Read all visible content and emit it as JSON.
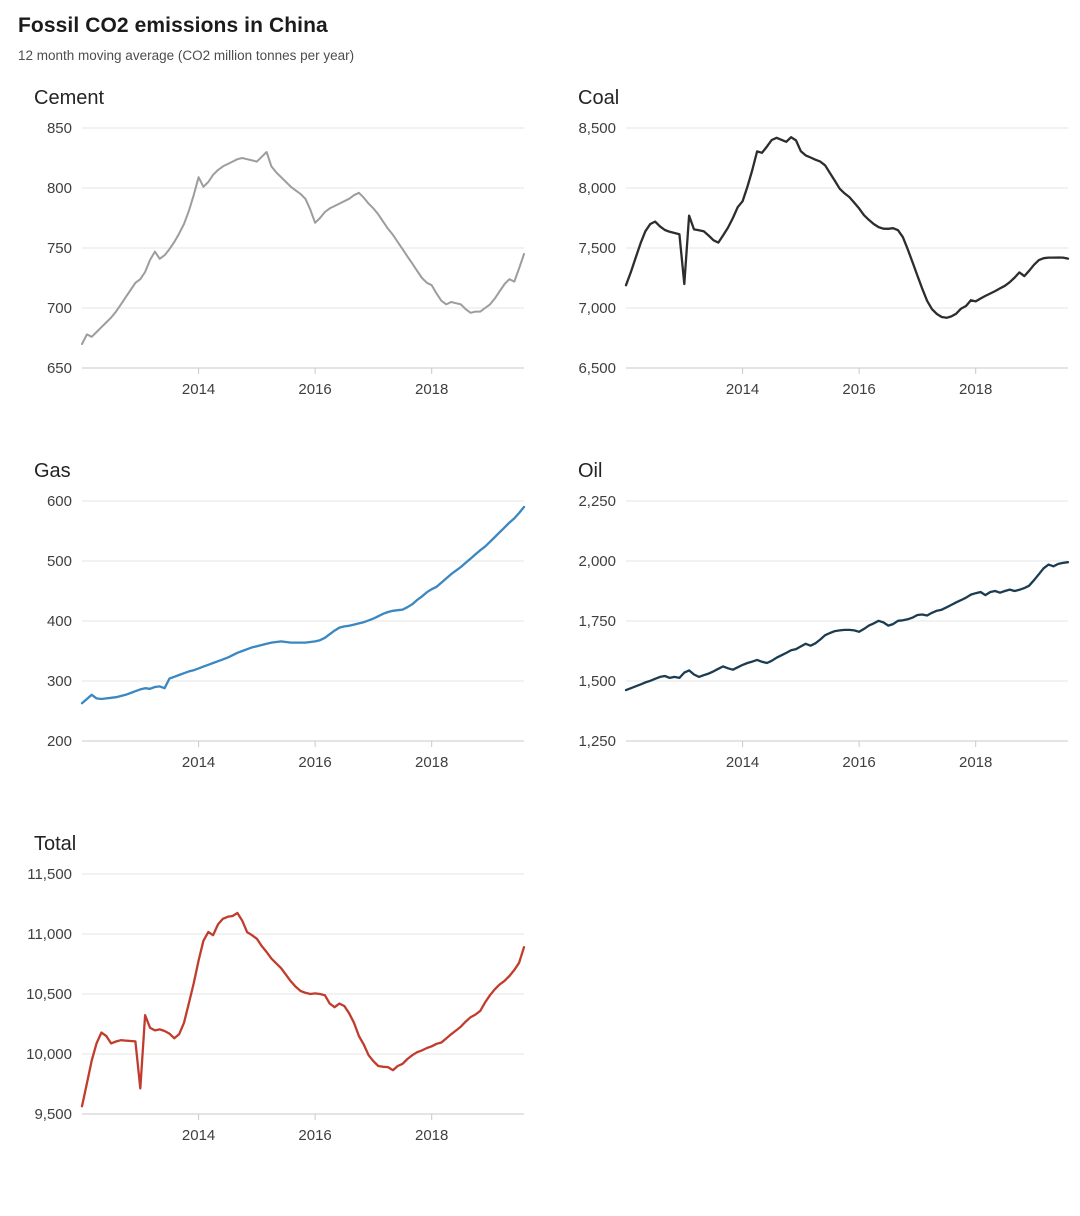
{
  "header": {
    "title": "Fossil CO2 emissions in China",
    "subtitle": "12 month moving average (CO2 million tonnes per year)"
  },
  "chart_data": {
    "type": "line",
    "layout": "small-multiples-2col",
    "grid": true,
    "legend": "none",
    "x_unit": "year",
    "x_start": 2012.0,
    "x_step": 0.0833333,
    "x_ticks": [
      2014,
      2016,
      2018
    ],
    "axis_color": "#c9c9c9",
    "gridline_color": "#e6e6e6",
    "tick_label_color": "#3f3f3f",
    "charts": [
      {
        "id": "cement",
        "title": "Cement",
        "color": "#9d9d9d",
        "stroke_width": 2.0,
        "ylim": [
          650,
          850
        ],
        "y_ticks": [
          650,
          700,
          750,
          800,
          850
        ],
        "values": [
          670,
          678,
          676,
          680,
          684,
          688,
          692,
          697,
          703,
          709,
          715,
          721,
          724,
          730,
          740,
          747,
          741,
          744,
          749,
          755,
          762,
          770,
          781,
          794,
          809,
          801,
          805,
          811,
          815,
          818,
          820,
          822,
          824,
          825,
          824,
          823,
          822,
          826,
          830,
          818,
          813,
          809,
          805,
          801,
          798,
          795,
          791,
          782,
          771,
          775,
          780,
          783,
          785,
          787,
          789,
          791,
          794,
          796,
          792,
          787,
          783,
          778,
          772,
          766,
          761,
          755,
          749,
          743,
          737,
          731,
          725,
          721,
          719,
          712,
          706,
          703,
          705,
          704,
          703,
          699,
          696,
          697,
          697,
          700,
          703,
          708,
          714,
          720,
          724,
          722,
          733,
          745
        ]
      },
      {
        "id": "coal",
        "title": "Coal",
        "color": "#2d2d2d",
        "stroke_width": 2.3,
        "ylim": [
          6500,
          8500
        ],
        "y_ticks": [
          6500,
          7000,
          7500,
          8000,
          8500
        ],
        "values": [
          7190,
          7300,
          7420,
          7540,
          7640,
          7700,
          7720,
          7680,
          7650,
          7635,
          7625,
          7615,
          7200,
          7770,
          7655,
          7648,
          7640,
          7604,
          7565,
          7545,
          7605,
          7670,
          7750,
          7840,
          7890,
          8010,
          8150,
          8305,
          8293,
          8345,
          8400,
          8418,
          8402,
          8385,
          8423,
          8397,
          8306,
          8272,
          8254,
          8236,
          8220,
          8189,
          8124,
          8059,
          7994,
          7955,
          7924,
          7877,
          7830,
          7773,
          7734,
          7700,
          7674,
          7661,
          7660,
          7665,
          7648,
          7590,
          7490,
          7380,
          7270,
          7160,
          7060,
          6990,
          6950,
          6925,
          6918,
          6930,
          6953,
          6995,
          7017,
          7065,
          7055,
          7079,
          7101,
          7121,
          7141,
          7163,
          7185,
          7215,
          7253,
          7297,
          7266,
          7310,
          7360,
          7399,
          7415,
          7420,
          7420,
          7421,
          7420,
          7412
        ]
      },
      {
        "id": "gas",
        "title": "Gas",
        "color": "#3a87c1",
        "stroke_width": 2.3,
        "ylim": [
          200,
          600
        ],
        "y_ticks": [
          200,
          300,
          400,
          500,
          600
        ],
        "values": [
          263,
          270,
          277,
          271,
          270,
          271,
          272,
          273,
          275,
          277,
          280,
          283,
          286,
          288,
          287,
          290,
          291,
          288,
          304,
          307,
          310,
          313,
          316,
          318,
          321,
          324,
          327,
          330,
          333,
          336,
          339,
          343,
          347,
          350,
          353,
          356,
          358,
          360,
          362,
          364,
          365,
          366,
          365,
          364,
          364,
          364,
          364,
          365,
          366,
          368,
          372,
          378,
          384,
          389,
          391,
          392,
          394,
          396,
          398,
          401,
          404,
          408,
          412,
          415,
          417,
          418,
          419,
          423,
          428,
          435,
          441,
          448,
          453,
          457,
          464,
          471,
          478,
          484,
          490,
          497,
          504,
          511,
          518,
          524,
          532,
          540,
          548,
          556,
          564,
          571,
          580,
          590
        ]
      },
      {
        "id": "oil",
        "title": "Oil",
        "color": "#1c3c52",
        "stroke_width": 2.3,
        "ylim": [
          1250,
          2250
        ],
        "y_ticks": [
          1250,
          1500,
          1750,
          2000,
          2250
        ],
        "values": [
          1462,
          1470,
          1478,
          1486,
          1494,
          1501,
          1509,
          1517,
          1521,
          1513,
          1517,
          1513,
          1535,
          1544,
          1527,
          1517,
          1524,
          1531,
          1540,
          1551,
          1561,
          1553,
          1547,
          1557,
          1567,
          1575,
          1581,
          1588,
          1580,
          1575,
          1584,
          1597,
          1607,
          1617,
          1628,
          1633,
          1644,
          1655,
          1647,
          1657,
          1673,
          1691,
          1700,
          1708,
          1711,
          1713,
          1713,
          1711,
          1705,
          1717,
          1731,
          1740,
          1751,
          1744,
          1731,
          1737,
          1751,
          1753,
          1757,
          1764,
          1775,
          1777,
          1773,
          1784,
          1793,
          1797,
          1807,
          1817,
          1828,
          1837,
          1847,
          1860,
          1866,
          1871,
          1858,
          1871,
          1875,
          1868,
          1875,
          1881,
          1875,
          1880,
          1887,
          1897,
          1920,
          1945,
          1970,
          1985,
          1978,
          1988,
          1992,
          1995
        ]
      },
      {
        "id": "total",
        "title": "Total",
        "color": "#c13c2d",
        "stroke_width": 2.3,
        "ylim": [
          9500,
          11500
        ],
        "y_ticks": [
          9500,
          10000,
          10500,
          11000,
          11500
        ],
        "values": [
          9565,
          9755,
          9945,
          10090,
          10178,
          10150,
          10088,
          10104,
          10115,
          10112,
          10108,
          10105,
          9713,
          10323,
          10219,
          10197,
          10205,
          10192,
          10170,
          10131,
          10164,
          10260,
          10424,
          10588,
          10779,
          10943,
          11017,
          10990,
          11080,
          11127,
          11143,
          11150,
          11175,
          11110,
          11016,
          10990,
          10960,
          10900,
          10850,
          10795,
          10755,
          10715,
          10660,
          10605,
          10560,
          10525,
          10510,
          10500,
          10505,
          10500,
          10490,
          10420,
          10390,
          10420,
          10400,
          10340,
          10260,
          10150,
          10080,
          9990,
          9940,
          9900,
          9893,
          9891,
          9865,
          9900,
          9918,
          9958,
          9990,
          10015,
          10030,
          10050,
          10064,
          10085,
          10096,
          10130,
          10164,
          10196,
          10228,
          10270,
          10307,
          10328,
          10360,
          10430,
          10490,
          10540,
          10580,
          10610,
          10650,
          10700,
          10760,
          10890
        ]
      }
    ]
  }
}
